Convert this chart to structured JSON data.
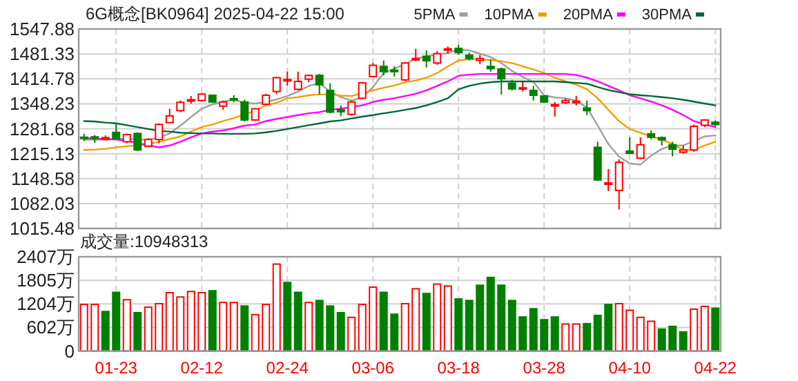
{
  "chart_data": [
    {
      "type": "candlestick",
      "title": "6G概念[BK0964] 2025-04-22 15:00",
      "categories": [
        null,
        null,
        null,
        null,
        null,
        null,
        null,
        null,
        null,
        null,
        null,
        null,
        null,
        null,
        null,
        null,
        null,
        null,
        null,
        null,
        null,
        null,
        null,
        null,
        null,
        null,
        null,
        null,
        null,
        null,
        null,
        null,
        null,
        null,
        null,
        null,
        null,
        null,
        null,
        null,
        null,
        null,
        null,
        null,
        null,
        null,
        null,
        null,
        null,
        null,
        null,
        null,
        null,
        null,
        null,
        null,
        null,
        null,
        null,
        null
      ],
      "ohlc": [
        [
          1259,
          1268,
          1249,
          1258
        ],
        [
          1260,
          1265,
          1244,
          1258
        ],
        [
          1254,
          1264,
          1252,
          1258
        ],
        [
          1272,
          1298,
          1253,
          1255
        ],
        [
          1247,
          1269,
          1243,
          1266
        ],
        [
          1269,
          1272,
          1222,
          1225
        ],
        [
          1235,
          1257,
          1232,
          1253
        ],
        [
          1253,
          1296,
          1243,
          1293
        ],
        [
          1298,
          1335,
          1296,
          1316
        ],
        [
          1330,
          1357,
          1326,
          1352
        ],
        [
          1357,
          1369,
          1349,
          1359
        ],
        [
          1357,
          1377,
          1354,
          1374
        ],
        [
          1371,
          1373,
          1351,
          1353
        ],
        [
          1342,
          1357,
          1332,
          1353
        ],
        [
          1362,
          1371,
          1352,
          1359
        ],
        [
          1353,
          1359,
          1301,
          1305
        ],
        [
          1305,
          1337,
          1303,
          1335
        ],
        [
          1347,
          1375,
          1344,
          1371
        ],
        [
          1381,
          1420,
          1374,
          1418
        ],
        [
          1410,
          1434,
          1396,
          1413
        ],
        [
          1387,
          1434,
          1384,
          1408
        ],
        [
          1414,
          1425,
          1406,
          1424
        ],
        [
          1424,
          1428,
          1373,
          1399
        ],
        [
          1384,
          1403,
          1323,
          1326
        ],
        [
          1332,
          1344,
          1315,
          1327
        ],
        [
          1320,
          1357,
          1316,
          1353
        ],
        [
          1363,
          1407,
          1360,
          1404
        ],
        [
          1421,
          1457,
          1420,
          1451
        ],
        [
          1448,
          1464,
          1424,
          1434
        ],
        [
          1438,
          1448,
          1421,
          1434
        ],
        [
          1412,
          1460,
          1409,
          1457
        ],
        [
          1467,
          1495,
          1462,
          1469
        ],
        [
          1475,
          1491,
          1445,
          1463
        ],
        [
          1457,
          1489,
          1452,
          1482
        ],
        [
          1492,
          1501,
          1482,
          1495
        ],
        [
          1496,
          1506,
          1479,
          1485
        ],
        [
          1478,
          1485,
          1464,
          1469
        ],
        [
          1464,
          1479,
          1454,
          1469
        ],
        [
          1448,
          1467,
          1434,
          1442
        ],
        [
          1441,
          1445,
          1373,
          1415
        ],
        [
          1403,
          1412,
          1384,
          1388
        ],
        [
          1388,
          1408,
          1381,
          1391
        ],
        [
          1384,
          1396,
          1357,
          1371
        ],
        [
          1369,
          1371,
          1351,
          1353
        ],
        [
          1343,
          1353,
          1314,
          1346
        ],
        [
          1351,
          1363,
          1348,
          1357
        ],
        [
          1351,
          1369,
          1344,
          1355
        ],
        [
          1337,
          1357,
          1318,
          1330
        ],
        [
          1232,
          1247,
          1142,
          1145
        ],
        [
          1134,
          1174,
          1115,
          1137
        ],
        [
          1117,
          1200,
          1066,
          1192
        ],
        [
          1222,
          1259,
          1215,
          1216
        ],
        [
          1203,
          1259,
          1200,
          1239
        ],
        [
          1268,
          1277,
          1253,
          1259
        ],
        [
          1258,
          1261,
          1237,
          1252
        ],
        [
          1239,
          1247,
          1208,
          1227
        ],
        [
          1219,
          1237,
          1215,
          1225
        ],
        [
          1225,
          1293,
          1220,
          1288
        ],
        [
          1291,
          1307,
          1286,
          1305
        ],
        [
          1299,
          1304,
          1288,
          1293
        ]
      ],
      "colors": [
        "#008000",
        "#008000",
        "#ff0000",
        "#008000",
        "#ff0000",
        "#008000",
        "#ff0000",
        "#ff0000",
        "#ff0000",
        "#ff0000",
        "#ff0000",
        "#ff0000",
        "#008000",
        "#ff0000",
        "#008000",
        "#008000",
        "#ff0000",
        "#ff0000",
        "#ff0000",
        "#ff0000",
        "#ff0000",
        "#ff0000",
        "#008000",
        "#008000",
        "#008000",
        "#ff0000",
        "#ff0000",
        "#ff0000",
        "#008000",
        "#008000",
        "#ff0000",
        "#ff0000",
        "#008000",
        "#ff0000",
        "#ff0000",
        "#008000",
        "#008000",
        "#ff0000",
        "#008000",
        "#008000",
        "#008000",
        "#ff0000",
        "#008000",
        "#008000",
        "#ff0000",
        "#ff0000",
        "#ff0000",
        "#008000",
        "#008000",
        "#ff0000",
        "#ff0000",
        "#008000",
        "#ff0000",
        "#008000",
        "#008000",
        "#008000",
        "#ff0000",
        "#ff0000",
        "#ff0000",
        "#008000"
      ],
      "ylim": [
        1015.48,
        1547.88
      ],
      "yticks": [
        1015.48,
        1082.03,
        1148.58,
        1215.13,
        1281.68,
        1348.23,
        1414.78,
        1481.33,
        1547.88
      ],
      "grid": true,
      "legend": "top right",
      "tick_labels": "y",
      "series": [
        {
          "name": "5PMA",
          "type": "line",
          "color": "#a0a0a0",
          "values": [
            1252,
            1253,
            1252,
            1254,
            1255,
            1253,
            1252,
            1259,
            1269,
            1290,
            1313,
            1335,
            1347,
            1354,
            1359,
            1351,
            1349,
            1353,
            1360,
            1369,
            1381,
            1396,
            1403,
            1381,
            1366,
            1357,
            1365,
            1393,
            1430,
            1442,
            1454,
            1469,
            1475,
            1479,
            1484,
            1493,
            1491,
            1482,
            1473,
            1457,
            1436,
            1420,
            1406,
            1371,
            1365,
            1363,
            1357,
            1338,
            1290,
            1241,
            1207,
            1189,
            1186,
            1210,
            1228,
            1237,
            1237,
            1249,
            1261,
            1264
          ]
        },
        {
          "name": "10PMA",
          "type": "line",
          "color": "#f0a000",
          "values": [
            1225,
            1226,
            1228,
            1232,
            1235,
            1237,
            1241,
            1247,
            1254,
            1261,
            1274,
            1286,
            1293,
            1302,
            1310,
            1320,
            1330,
            1344,
            1351,
            1363,
            1366,
            1371,
            1373,
            1373,
            1370,
            1369,
            1377,
            1384,
            1391,
            1397,
            1406,
            1410,
            1418,
            1430,
            1448,
            1464,
            1467,
            1467,
            1465,
            1462,
            1457,
            1448,
            1440,
            1430,
            1418,
            1408,
            1399,
            1387,
            1363,
            1332,
            1302,
            1281,
            1271,
            1261,
            1253,
            1241,
            1225,
            1225,
            1237,
            1247
          ]
        },
        {
          "name": "20PMA",
          "type": "line",
          "color": "#ff00ff",
          "values": [
            1257,
            1255,
            1254,
            1253,
            1249,
            1244,
            1237,
            1232,
            1237,
            1247,
            1259,
            1269,
            1274,
            1277,
            1283,
            1290,
            1293,
            1302,
            1308,
            1313,
            1318,
            1323,
            1326,
            1332,
            1335,
            1340,
            1344,
            1353,
            1359,
            1363,
            1369,
            1375,
            1384,
            1396,
            1408,
            1423,
            1426,
            1428,
            1428,
            1428,
            1428,
            1428,
            1428,
            1428,
            1428,
            1428,
            1425,
            1418,
            1408,
            1396,
            1384,
            1371,
            1363,
            1354,
            1344,
            1332,
            1318,
            1302,
            1293,
            1286
          ]
        },
        {
          "name": "30PMA",
          "type": "line",
          "color": "#006633",
          "values": [
            1302,
            1301,
            1298,
            1296,
            1291,
            1286,
            1281,
            1276,
            1274,
            1271,
            1270,
            1269,
            1269,
            1268,
            1268,
            1268,
            1269,
            1272,
            1276,
            1281,
            1286,
            1291,
            1296,
            1301,
            1304,
            1309,
            1314,
            1318,
            1323,
            1327,
            1332,
            1337,
            1344,
            1353,
            1363,
            1387,
            1396,
            1402,
            1406,
            1408,
            1408,
            1408,
            1408,
            1408,
            1408,
            1406,
            1404,
            1402,
            1393,
            1385,
            1379,
            1374,
            1371,
            1369,
            1366,
            1363,
            1359,
            1354,
            1349,
            1344
          ]
        }
      ]
    },
    {
      "type": "bar",
      "title": "成交量:10948313",
      "categories": [
        null,
        null,
        null,
        "01-23",
        null,
        null,
        null,
        null,
        null,
        null,
        null,
        "02-12",
        null,
        null,
        null,
        null,
        null,
        null,
        null,
        "02-24",
        null,
        null,
        null,
        null,
        null,
        null,
        null,
        "03-06",
        null,
        null,
        null,
        null,
        null,
        null,
        null,
        "03-18",
        null,
        null,
        null,
        null,
        null,
        null,
        null,
        "03-28",
        null,
        null,
        null,
        null,
        null,
        null,
        null,
        "04-10",
        null,
        null,
        null,
        null,
        null,
        null,
        null,
        "04-22"
      ],
      "values": [
        1190,
        1190,
        1010,
        1500,
        1310,
        980,
        1120,
        1210,
        1490,
        1380,
        1520,
        1490,
        1540,
        1240,
        1240,
        1150,
        930,
        1190,
        2220,
        1750,
        1500,
        1240,
        1290,
        1150,
        980,
        860,
        1190,
        1630,
        1500,
        940,
        1210,
        1590,
        1470,
        1710,
        1660,
        1330,
        1290,
        1680,
        1880,
        1680,
        1290,
        870,
        1080,
        800,
        870,
        690,
        690,
        700,
        910,
        1190,
        1210,
        1040,
        860,
        760,
        560,
        630,
        490,
        1070,
        1140,
        1095
      ],
      "colors": [
        "#ff0000",
        "#ff0000",
        "#008000",
        "#008000",
        "#ff0000",
        "#008000",
        "#ff0000",
        "#ff0000",
        "#ff0000",
        "#ff0000",
        "#ff0000",
        "#ff0000",
        "#008000",
        "#ff0000",
        "#ff0000",
        "#008000",
        "#ff0000",
        "#ff0000",
        "#ff0000",
        "#008000",
        "#008000",
        "#ff0000",
        "#008000",
        "#008000",
        "#008000",
        "#ff0000",
        "#ff0000",
        "#ff0000",
        "#008000",
        "#008000",
        "#ff0000",
        "#ff0000",
        "#008000",
        "#ff0000",
        "#ff0000",
        "#008000",
        "#008000",
        "#008000",
        "#008000",
        "#008000",
        "#008000",
        "#008000",
        "#008000",
        "#008000",
        "#008000",
        "#ff0000",
        "#ff0000",
        "#008000",
        "#008000",
        "#008000",
        "#ff0000",
        "#ff0000",
        "#ff0000",
        "#ff0000",
        "#008000",
        "#008000",
        "#008000",
        "#ff0000",
        "#ff0000",
        "#008000"
      ],
      "ylim": [
        0,
        2407
      ],
      "yticks": [
        0,
        {
          "value": 602,
          "label": "602万"
        },
        {
          "value": 1204,
          "label": "1204万"
        },
        {
          "value": 1805,
          "label": "1805万"
        },
        {
          "value": 2407,
          "label": "2407万"
        }
      ],
      "grid": true
    }
  ]
}
